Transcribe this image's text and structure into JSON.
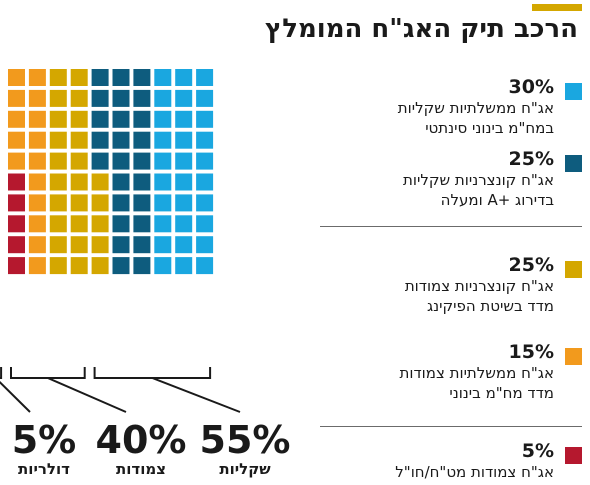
{
  "title": "הרכב תיק האג\"ח המומלץ",
  "colors": {
    "accent": "#d4a700",
    "light_blue": "#1aa7e0",
    "dark_blue": "#0e5c7e",
    "gold": "#d4a700",
    "orange": "#f29a1d",
    "red": "#b5182e"
  },
  "legend": [
    {
      "percent": "30%",
      "line1": "אג\"ח ממשלתיות שקליות",
      "line2": "במח\"מ בינוני סינתטי",
      "color": "#1aa7e0"
    },
    {
      "percent": "25%",
      "line1": "אג\"ח קונצרניות שקליות",
      "line2": "בדירוג +A ומעלה",
      "color": "#0e5c7e"
    },
    {
      "percent": "25%",
      "line1": "אג\"ח קונצרניות צמודות",
      "line2": "מדד בשיטת הפיקינג",
      "color": "#d4a700"
    },
    {
      "percent": "15%",
      "line1": "אג\"ח ממשלתיות צמודות",
      "line2": "מדד מח\"מ בינוני",
      "color": "#f29a1d"
    },
    {
      "percent": "5%",
      "line1": "אג\"ח צמודות מט\"ח/חו\"ל",
      "line2": "",
      "color": "#b5182e"
    }
  ],
  "groups": [
    {
      "percent": "55%",
      "label": "שקליות"
    },
    {
      "percent": "40%",
      "label": "צמודות"
    },
    {
      "percent": "5%",
      "label": "דולריות"
    }
  ],
  "chart_data": {
    "type": "waffle",
    "title": "הרכב תיק האג\"ח המומלץ",
    "rows": 10,
    "cols": 10,
    "fill_order": "right-to-left by column, top-to-bottom within column",
    "series": [
      {
        "name": "אג\"ח ממשלתיות שקליות במח\"מ בינוני סינתטי",
        "value": 30,
        "color": "#1aa7e0"
      },
      {
        "name": "אג\"ח קונצרניות שקליות בדירוג +A ומעלה",
        "value": 25,
        "color": "#0e5c7e"
      },
      {
        "name": "אג\"ח קונצרניות צמודות מדד בשיטת הפיקינג",
        "value": 25,
        "color": "#d4a700"
      },
      {
        "name": "אג\"ח ממשלתיות צמודות מדד מח\"מ בינוני",
        "value": 15,
        "color": "#f29a1d"
      },
      {
        "name": "אג\"ח צמודות מט\"ח/חו\"ל",
        "value": 5,
        "color": "#b5182e"
      }
    ],
    "groups": [
      {
        "label": "שקליות",
        "value": 55
      },
      {
        "label": "צמודות",
        "value": 40
      },
      {
        "label": "דולריות",
        "value": 5
      }
    ]
  }
}
